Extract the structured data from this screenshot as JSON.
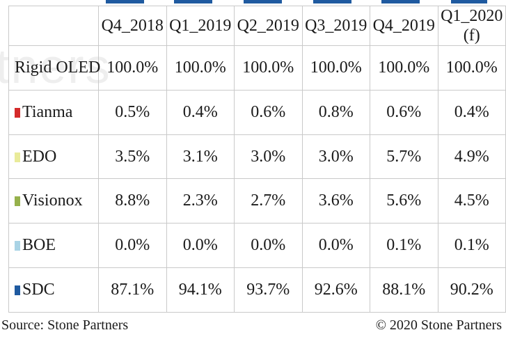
{
  "watermark": "tners",
  "colors": {
    "grid": "#c9c9c9",
    "accent_bar": "#1f5aa0",
    "Tianma": "#d42a2a",
    "EDO": "#e9eb9a",
    "Visionox": "#96b14c",
    "BOE": "#a9d3e5",
    "SDC": "#1f5aa0"
  },
  "chart_data": {
    "type": "table",
    "columns": [
      "Q4_2018",
      "Q1_2019",
      "Q2_2019",
      "Q3_2019",
      "Q4_2019",
      "Q1_2020 (f)"
    ],
    "rows": [
      {
        "label": "Rigid OLED",
        "values": [
          "100.0%",
          "100.0%",
          "100.0%",
          "100.0%",
          "100.0%",
          "100.0%"
        ]
      },
      {
        "label": "Tianma",
        "swatch": "Tianma",
        "values": [
          "0.5%",
          "0.4%",
          "0.6%",
          "0.8%",
          "0.6%",
          "0.4%"
        ]
      },
      {
        "label": "EDO",
        "swatch": "EDO",
        "values": [
          "3.5%",
          "3.1%",
          "3.0%",
          "3.0%",
          "5.7%",
          "4.9%"
        ]
      },
      {
        "label": "Visionox",
        "swatch": "Visionox",
        "values": [
          "8.8%",
          "2.3%",
          "2.7%",
          "3.6%",
          "5.6%",
          "4.5%"
        ]
      },
      {
        "label": "BOE",
        "swatch": "BOE",
        "values": [
          "0.0%",
          "0.0%",
          "0.0%",
          "0.0%",
          "0.1%",
          "0.1%"
        ]
      },
      {
        "label": "SDC",
        "swatch": "SDC",
        "values": [
          "87.1%",
          "94.1%",
          "93.7%",
          "92.6%",
          "88.1%",
          "90.2%"
        ]
      }
    ]
  },
  "footer": {
    "source": "Source: Stone Partners",
    "copyright": "© 2020 Stone Partners"
  }
}
